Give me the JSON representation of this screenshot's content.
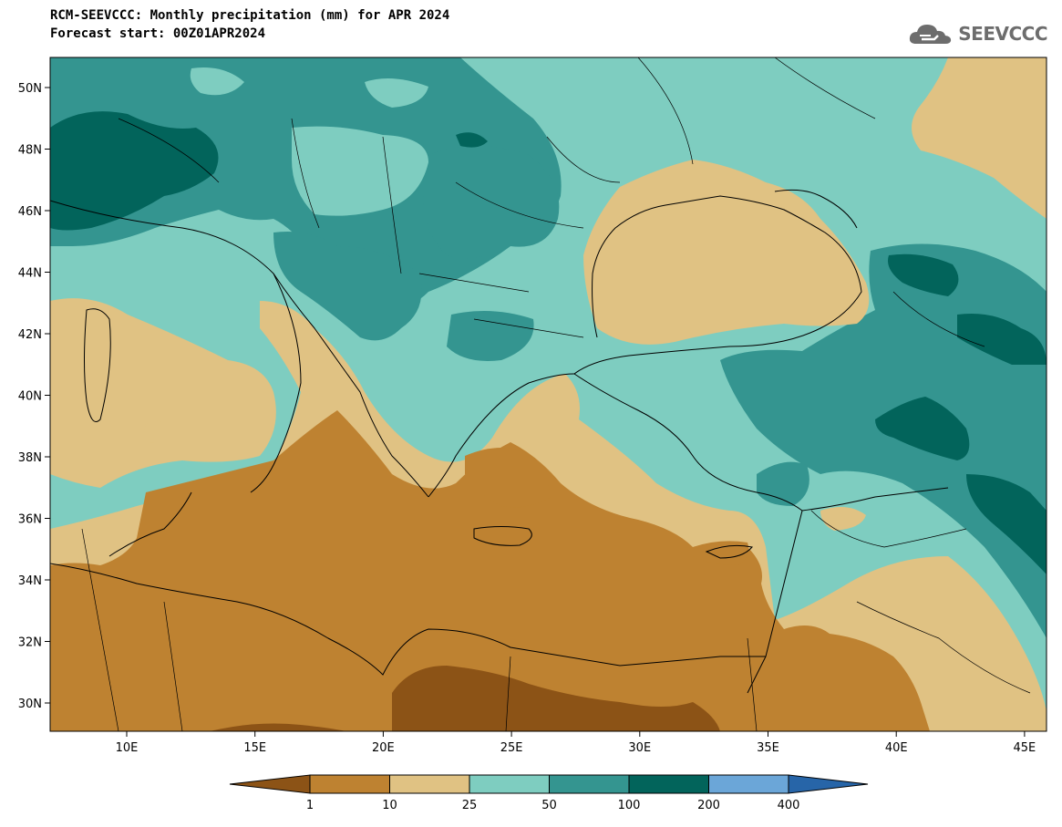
{
  "header": {
    "title_line1": "RCM-SEEVCCC: Monthly precipitation (mm) for APR 2024",
    "title_line2": "Forecast start: 00Z01APR2024"
  },
  "logo": {
    "text": "SEEVCCC",
    "icon": "cloud-logo-icon"
  },
  "map": {
    "lat_ticks": [
      "50N",
      "48N",
      "46N",
      "44N",
      "42N",
      "40N",
      "38N",
      "36N",
      "34N",
      "32N",
      "30N"
    ],
    "lon_ticks": [
      "10E",
      "15E",
      "20E",
      "25E",
      "30E",
      "35E",
      "40E",
      "45E"
    ]
  },
  "colorbar": {
    "labels": [
      "1",
      "10",
      "25",
      "50",
      "100",
      "200",
      "400"
    ],
    "colors": [
      "#8c5316",
      "#be8231",
      "#e0c283",
      "#7ecdc0",
      "#349590",
      "#02645b",
      "#6ba6d8",
      "#2765a8"
    ]
  },
  "colors": {
    "c_lt1": "#8c5316",
    "c_1_10": "#be8231",
    "c_10_25": "#e0c283",
    "c_25_50": "#7ecdc0",
    "c_50_100": "#349590",
    "c_100_200": "#02645b"
  }
}
